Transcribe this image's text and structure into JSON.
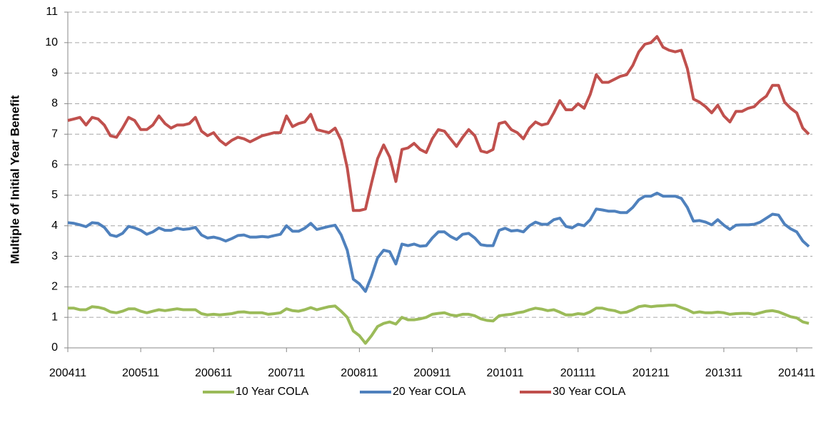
{
  "chart_data": {
    "type": "line",
    "y_label": "Multiple of Initial Year Benefit",
    "categories": [
      "200411",
      null,
      null,
      null,
      null,
      null,
      null,
      null,
      null,
      null,
      null,
      null,
      "200511",
      null,
      null,
      null,
      null,
      null,
      null,
      null,
      null,
      null,
      null,
      null,
      "200611",
      null,
      null,
      null,
      null,
      null,
      null,
      null,
      null,
      null,
      null,
      null,
      "200711",
      null,
      null,
      null,
      null,
      null,
      null,
      null,
      null,
      null,
      null,
      null,
      "200811",
      null,
      null,
      null,
      null,
      null,
      null,
      null,
      null,
      null,
      null,
      null,
      "200911",
      null,
      null,
      null,
      null,
      null,
      null,
      null,
      null,
      null,
      null,
      null,
      "201011",
      null,
      null,
      null,
      null,
      null,
      null,
      null,
      null,
      null,
      null,
      null,
      "201111",
      null,
      null,
      null,
      null,
      null,
      null,
      null,
      null,
      null,
      null,
      null,
      "201211",
      null,
      null,
      null,
      null,
      null,
      null,
      null,
      null,
      null,
      null,
      null,
      "201311",
      null,
      null,
      null,
      null,
      null,
      null,
      null,
      null,
      null,
      null,
      null,
      "201411",
      null,
      null
    ],
    "ylim": [
      0,
      11
    ],
    "yticks": [
      0,
      1,
      2,
      3,
      4,
      5,
      6,
      7,
      8,
      9,
      10,
      11
    ],
    "grid": true,
    "legend": "bottom",
    "series": [
      {
        "name": "10 Year COLA",
        "color": "#9bbb59",
        "values": [
          1.3,
          1.3,
          1.25,
          1.25,
          1.35,
          1.33,
          1.28,
          1.18,
          1.15,
          1.2,
          1.28,
          1.28,
          1.2,
          1.15,
          1.2,
          1.25,
          1.22,
          1.25,
          1.28,
          1.25,
          1.25,
          1.25,
          1.12,
          1.08,
          1.1,
          1.08,
          1.1,
          1.12,
          1.17,
          1.18,
          1.15,
          1.15,
          1.15,
          1.1,
          1.12,
          1.15,
          1.28,
          1.22,
          1.2,
          1.25,
          1.32,
          1.25,
          1.3,
          1.35,
          1.37,
          1.2,
          1.0,
          0.55,
          0.4,
          0.15,
          0.4,
          0.7,
          0.8,
          0.85,
          0.78,
          1.0,
          0.92,
          0.92,
          0.95,
          1.0,
          1.1,
          1.13,
          1.15,
          1.08,
          1.05,
          1.1,
          1.1,
          1.05,
          0.95,
          0.9,
          0.88,
          1.05,
          1.08,
          1.1,
          1.15,
          1.18,
          1.25,
          1.3,
          1.27,
          1.22,
          1.25,
          1.17,
          1.08,
          1.08,
          1.12,
          1.1,
          1.18,
          1.3,
          1.3,
          1.25,
          1.22,
          1.15,
          1.17,
          1.25,
          1.35,
          1.38,
          1.35,
          1.37,
          1.38,
          1.4,
          1.4,
          1.32,
          1.25,
          1.15,
          1.18,
          1.15,
          1.15,
          1.17,
          1.15,
          1.1,
          1.12,
          1.13,
          1.13,
          1.1,
          1.15,
          1.2,
          1.22,
          1.18,
          1.1,
          1.02,
          0.98,
          0.85,
          0.8
        ]
      },
      {
        "name": "20 Year COLA",
        "color": "#4f81bd",
        "values": [
          4.1,
          4.08,
          4.03,
          3.97,
          4.1,
          4.08,
          3.95,
          3.7,
          3.65,
          3.75,
          3.98,
          3.93,
          3.85,
          3.72,
          3.8,
          3.93,
          3.85,
          3.85,
          3.92,
          3.88,
          3.9,
          3.95,
          3.7,
          3.6,
          3.63,
          3.58,
          3.5,
          3.58,
          3.68,
          3.7,
          3.63,
          3.63,
          3.65,
          3.63,
          3.68,
          3.72,
          4.0,
          3.82,
          3.82,
          3.92,
          4.08,
          3.88,
          3.93,
          3.98,
          4.02,
          3.7,
          3.2,
          2.25,
          2.1,
          1.85,
          2.35,
          2.95,
          3.2,
          3.15,
          2.75,
          3.4,
          3.35,
          3.4,
          3.33,
          3.35,
          3.6,
          3.8,
          3.8,
          3.65,
          3.55,
          3.72,
          3.75,
          3.6,
          3.38,
          3.35,
          3.35,
          3.85,
          3.92,
          3.83,
          3.85,
          3.8,
          4.0,
          4.12,
          4.05,
          4.05,
          4.2,
          4.25,
          3.98,
          3.93,
          4.05,
          4.0,
          4.2,
          4.55,
          4.52,
          4.48,
          4.48,
          4.43,
          4.43,
          4.6,
          4.85,
          4.97,
          4.97,
          5.07,
          4.97,
          4.97,
          4.97,
          4.9,
          4.6,
          4.15,
          4.17,
          4.12,
          4.03,
          4.2,
          4.02,
          3.88,
          4.02,
          4.03,
          4.03,
          4.05,
          4.12,
          4.25,
          4.38,
          4.35,
          4.05,
          3.9,
          3.8,
          3.5,
          3.32
        ]
      },
      {
        "name": "30 Year COLA",
        "color": "#c0504d",
        "values": [
          7.45,
          7.5,
          7.55,
          7.3,
          7.55,
          7.5,
          7.3,
          6.95,
          6.9,
          7.2,
          7.55,
          7.45,
          7.15,
          7.15,
          7.3,
          7.6,
          7.35,
          7.2,
          7.3,
          7.3,
          7.35,
          7.55,
          7.1,
          6.95,
          7.05,
          6.8,
          6.65,
          6.8,
          6.9,
          6.85,
          6.75,
          6.85,
          6.95,
          7.0,
          7.05,
          7.05,
          7.6,
          7.25,
          7.35,
          7.4,
          7.65,
          7.15,
          7.1,
          7.05,
          7.2,
          6.8,
          5.9,
          4.5,
          4.5,
          4.55,
          5.4,
          6.2,
          6.65,
          6.25,
          5.45,
          6.5,
          6.55,
          6.7,
          6.5,
          6.4,
          6.85,
          7.15,
          7.1,
          6.85,
          6.6,
          6.9,
          7.15,
          6.95,
          6.45,
          6.4,
          6.5,
          7.35,
          7.4,
          7.15,
          7.05,
          6.85,
          7.2,
          7.4,
          7.3,
          7.35,
          7.7,
          8.1,
          7.8,
          7.8,
          8.0,
          7.85,
          8.3,
          8.95,
          8.7,
          8.7,
          8.8,
          8.9,
          8.95,
          9.25,
          9.7,
          9.95,
          10.0,
          10.2,
          9.85,
          9.75,
          9.7,
          9.75,
          9.15,
          8.15,
          8.05,
          7.9,
          7.7,
          7.95,
          7.6,
          7.4,
          7.75,
          7.75,
          7.85,
          7.9,
          8.1,
          8.25,
          8.6,
          8.6,
          8.05,
          7.85,
          7.7,
          7.2,
          7.0
        ]
      }
    ]
  }
}
